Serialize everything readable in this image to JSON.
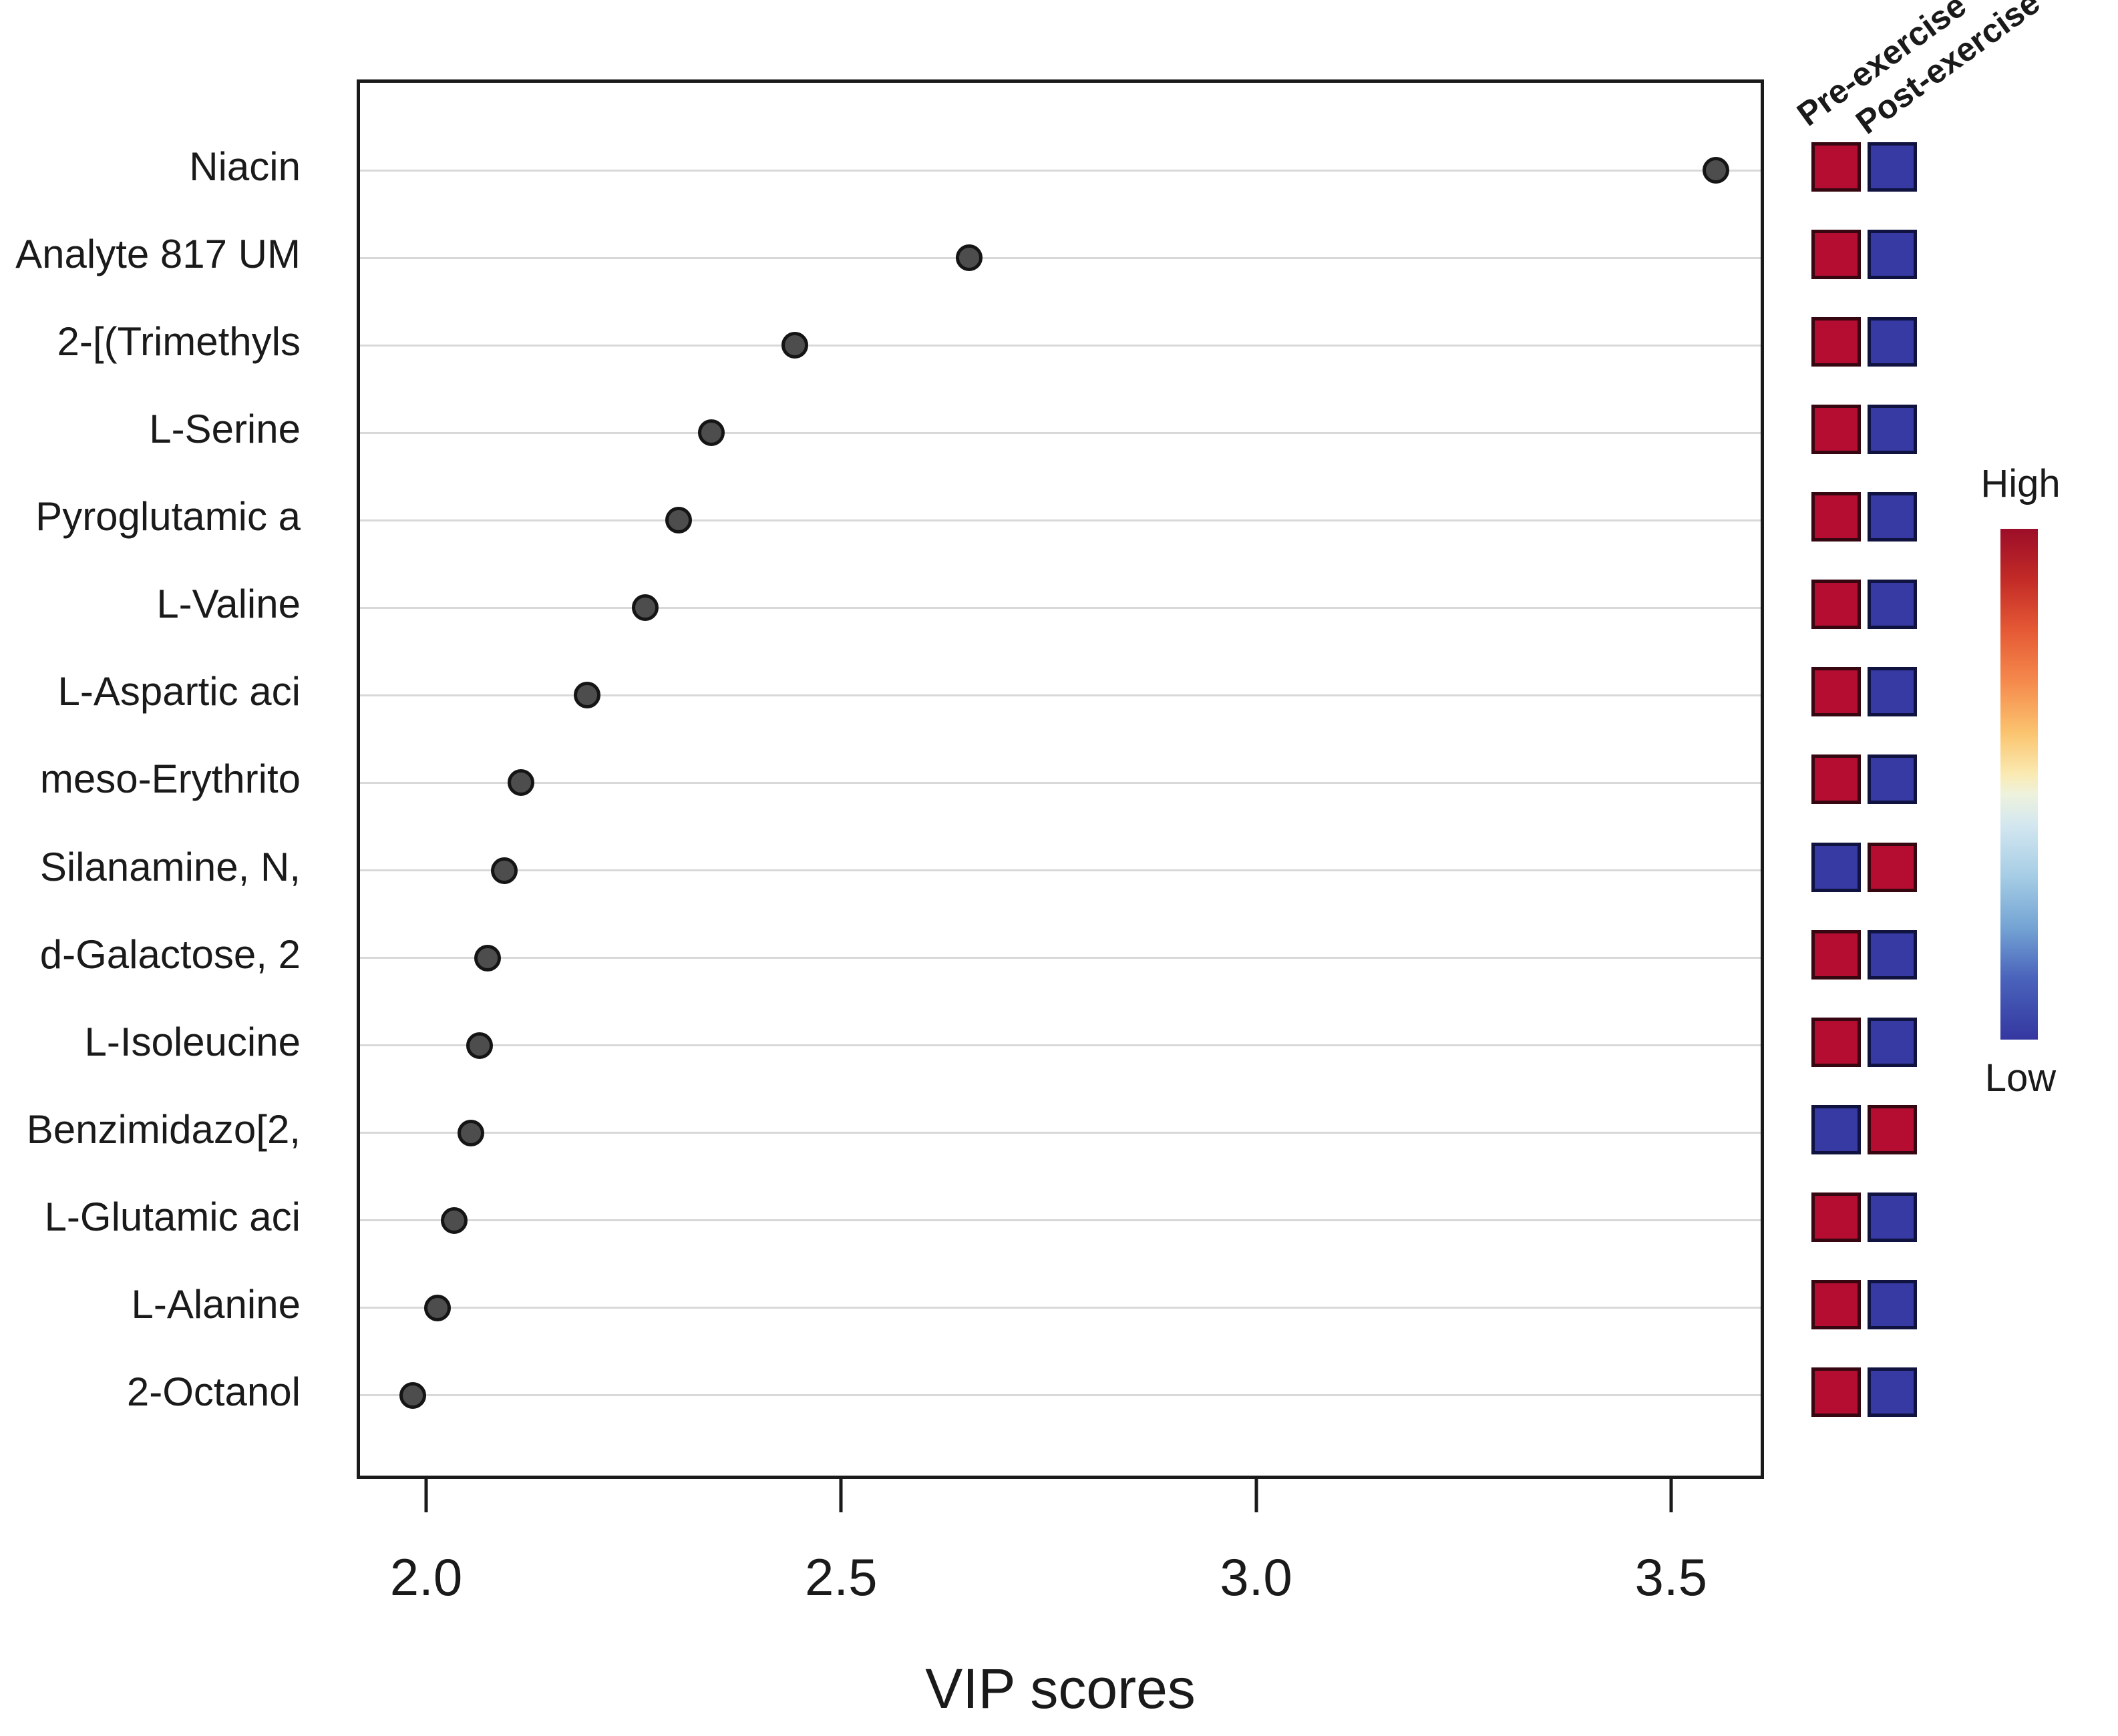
{
  "chart_data": {
    "type": "scatter",
    "variant": "vip-dot-plot",
    "title": "",
    "xlabel": "VIP scores",
    "x_ticks": [
      "2.0",
      "2.5",
      "3.0",
      "3.5"
    ],
    "xlim": [
      1.92,
      3.61
    ],
    "grid": true,
    "legend_position": "right",
    "points": [
      {
        "label": "Niacin",
        "vip": 3.55,
        "pre": "High",
        "post": "Low"
      },
      {
        "label": "Analyte 817 UM",
        "vip": 2.65,
        "pre": "High",
        "post": "Low"
      },
      {
        "label": "2-[(Trimethyls",
        "vip": 2.44,
        "pre": "High",
        "post": "Low"
      },
      {
        "label": "L-Serine",
        "vip": 2.34,
        "pre": "High",
        "post": "Low"
      },
      {
        "label": "Pyroglutamic a",
        "vip": 2.3,
        "pre": "High",
        "post": "Low"
      },
      {
        "label": "L-Valine",
        "vip": 2.26,
        "pre": "High",
        "post": "Low"
      },
      {
        "label": "L-Aspartic aci",
        "vip": 2.19,
        "pre": "High",
        "post": "Low"
      },
      {
        "label": "meso-Erythrito",
        "vip": 2.11,
        "pre": "High",
        "post": "Low"
      },
      {
        "label": "Silanamine, N,",
        "vip": 2.09,
        "pre": "Low",
        "post": "High"
      },
      {
        "label": "d-Galactose, 2",
        "vip": 2.07,
        "pre": "High",
        "post": "Low"
      },
      {
        "label": "L-Isoleucine",
        "vip": 2.06,
        "pre": "High",
        "post": "Low"
      },
      {
        "label": "Benzimidazo[2,",
        "vip": 2.05,
        "pre": "Low",
        "post": "High"
      },
      {
        "label": "L-Glutamic aci",
        "vip": 2.03,
        "pre": "High",
        "post": "Low"
      },
      {
        "label": "L-Alanine",
        "vip": 2.01,
        "pre": "High",
        "post": "Low"
      },
      {
        "label": "2-Octanol",
        "vip": 1.98,
        "pre": "High",
        "post": "Low"
      }
    ],
    "group_columns": [
      "Pre-exercise",
      "Post-exercise"
    ],
    "colorbar": {
      "high_label": "High",
      "low_label": "Low"
    }
  },
  "colors": {
    "high": "#b50d32",
    "high_border": "#370711",
    "low": "#363aa2",
    "low_border": "#10123f",
    "dot_fill": "#4d4d4d",
    "dot_border": "#151515",
    "gridline": "#d8d8d8",
    "axis": "#1a1a1a",
    "text": "#1a1a1a"
  }
}
